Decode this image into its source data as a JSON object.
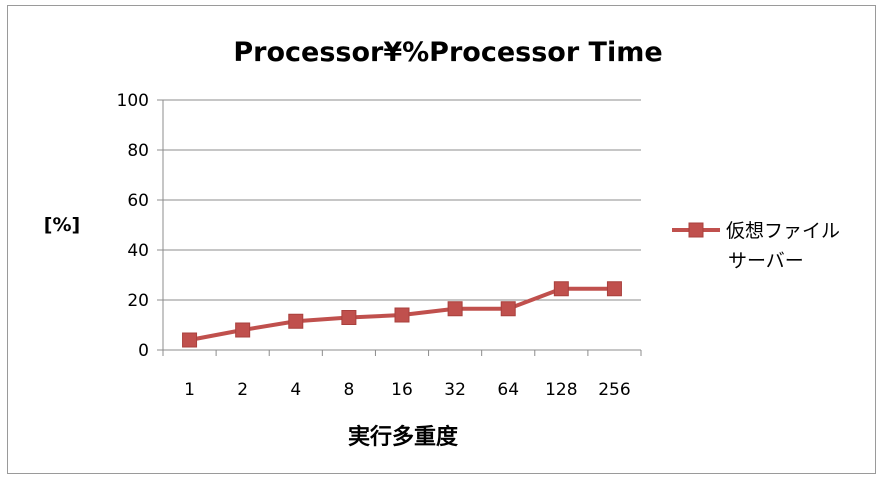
{
  "chart_data": {
    "type": "line",
    "title": "Processor¥%Processor Time",
    "xlabel": "実行多重度",
    "ylabel": "[%]",
    "categories": [
      "1",
      "2",
      "4",
      "8",
      "16",
      "32",
      "64",
      "128",
      "256"
    ],
    "series": [
      {
        "name": "仮想ファイルサーバー",
        "name_lines": [
          "仮想ファイル",
          "サーバー"
        ],
        "values": [
          4,
          8,
          11.5,
          13,
          14,
          16.5,
          16.5,
          24.5,
          24.5
        ],
        "color": "#c0504d",
        "marker": "square"
      }
    ],
    "ylim": [
      0,
      100
    ],
    "yticks": [
      "0",
      "20",
      "40",
      "60",
      "80",
      "100"
    ],
    "grid": true,
    "legend": "right"
  }
}
